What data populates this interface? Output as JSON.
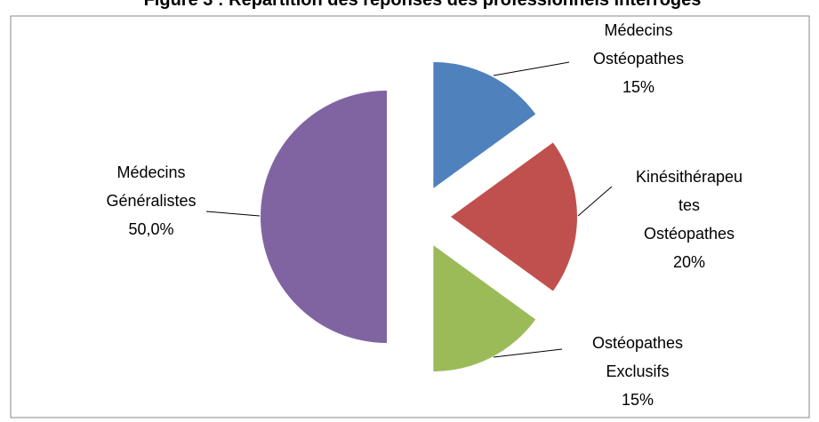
{
  "chart_data": {
    "type": "pie",
    "title": "Figure 3 : Répartition des réponses des professionnels interrogés",
    "categories": [
      "Médecins Ostéopathes",
      "Kinésithérapeutes Ostéopathes",
      "Ostéopathes Exclusifs",
      "Médecins Généralistes"
    ],
    "values": [
      15,
      20,
      15,
      50
    ],
    "value_labels": [
      "15%",
      "20%",
      "15%",
      "50,0%"
    ],
    "colors": [
      "#4f81bd",
      "#c0504d",
      "#9bbb59",
      "#8064a2"
    ]
  }
}
